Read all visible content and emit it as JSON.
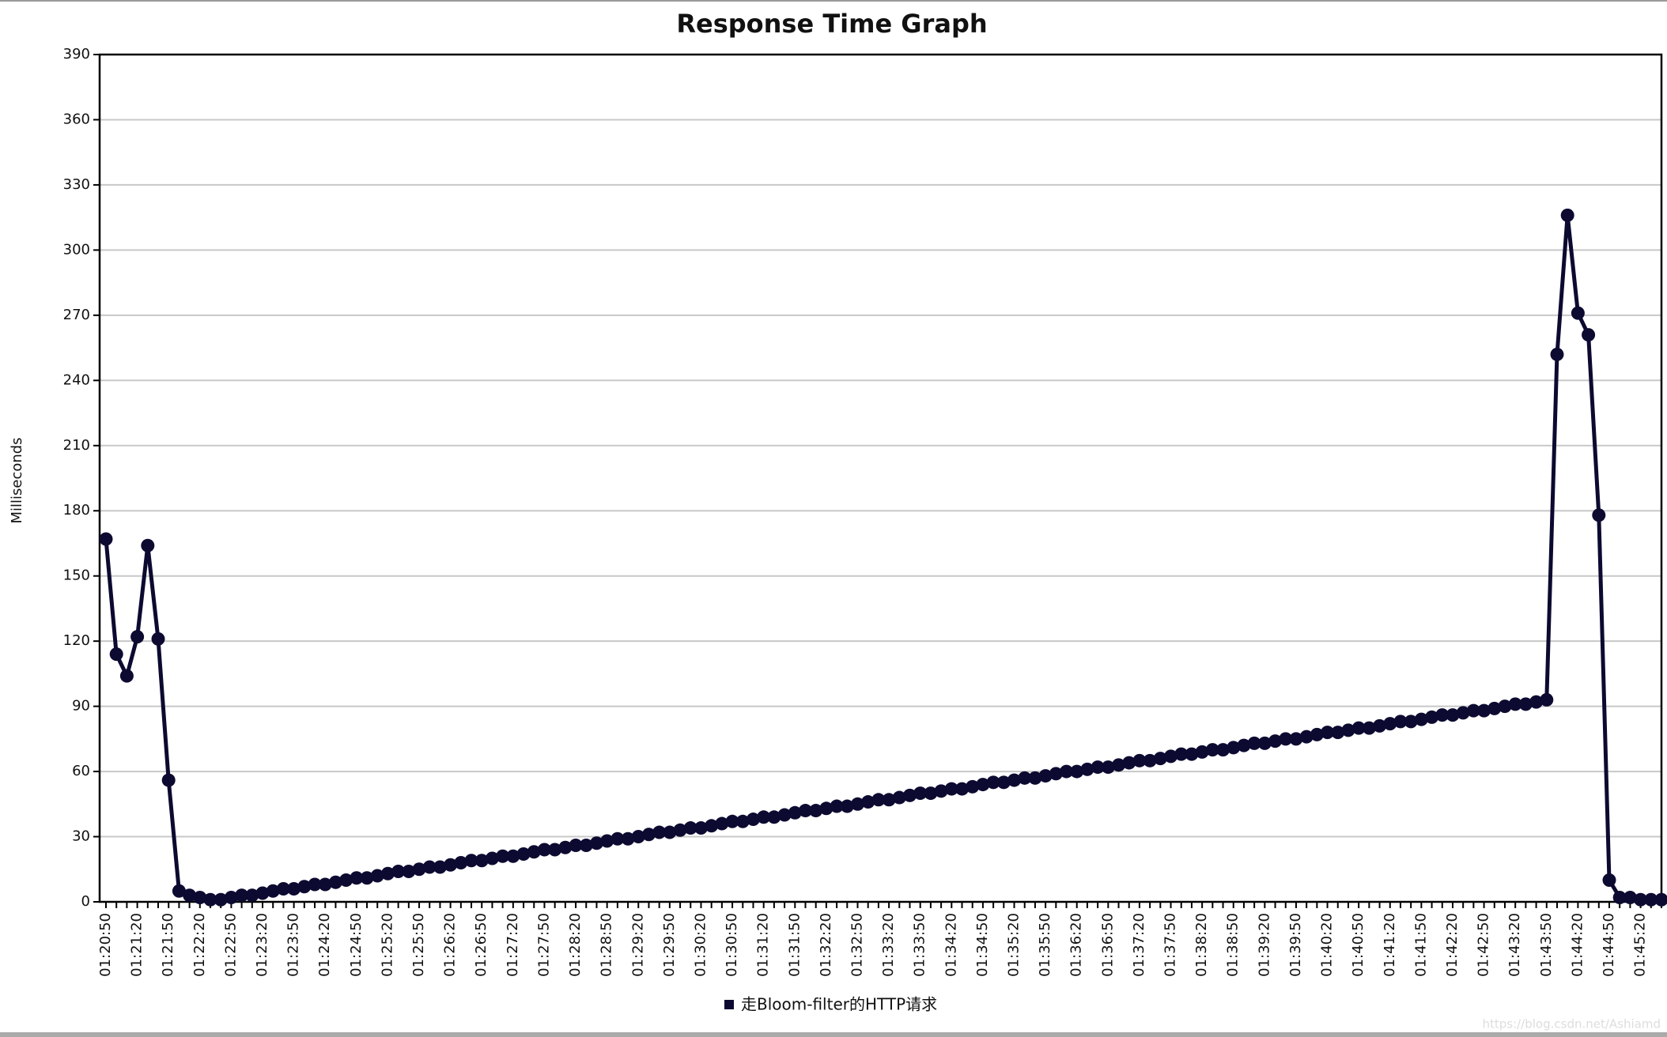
{
  "chart_data": {
    "type": "line",
    "title": "Response Time Graph",
    "y_label": "Milliseconds",
    "categories": [
      "01:20:50",
      null,
      null,
      "01:21:20",
      null,
      null,
      "01:21:50",
      null,
      null,
      "01:22:20",
      null,
      null,
      "01:22:50",
      null,
      null,
      "01:23:20",
      null,
      null,
      "01:23:50",
      null,
      null,
      "01:24:20",
      null,
      null,
      "01:24:50",
      null,
      null,
      "01:25:20",
      null,
      null,
      "01:25:50",
      null,
      null,
      "01:26:20",
      null,
      null,
      "01:26:50",
      null,
      null,
      "01:27:20",
      null,
      null,
      "01:27:50",
      null,
      null,
      "01:28:20",
      null,
      null,
      "01:28:50",
      null,
      null,
      "01:29:20",
      null,
      null,
      "01:29:50",
      null,
      null,
      "01:30:20",
      null,
      null,
      "01:30:50",
      null,
      null,
      "01:31:20",
      null,
      null,
      "01:31:50",
      null,
      null,
      "01:32:20",
      null,
      null,
      "01:32:50",
      null,
      null,
      "01:33:20",
      null,
      null,
      "01:33:50",
      null,
      null,
      "01:34:20",
      null,
      null,
      "01:34:50",
      null,
      null,
      "01:35:20",
      null,
      null,
      "01:35:50",
      null,
      null,
      "01:36:20",
      null,
      null,
      "01:36:50",
      null,
      null,
      "01:37:20",
      null,
      null,
      "01:37:50",
      null,
      null,
      "01:38:20",
      null,
      null,
      "01:38:50",
      null,
      null,
      "01:39:20",
      null,
      null,
      "01:39:50",
      null,
      null,
      "01:40:20",
      null,
      null,
      "01:40:50",
      null,
      null,
      "01:41:20",
      null,
      null,
      "01:41:50",
      null,
      null,
      "01:42:20",
      null,
      null,
      "01:42:50",
      null,
      null,
      "01:43:20",
      null,
      null,
      "01:43:50",
      null,
      null,
      "01:44:20",
      null,
      null,
      "01:44:50",
      null,
      null,
      "01:45:20",
      null,
      null
    ],
    "series": [
      {
        "name": "走Bloom-filter的HTTP请求",
        "color": "#0c0a30",
        "values": [
          167,
          114,
          104,
          122,
          164,
          121,
          56,
          5,
          3,
          2,
          1,
          1,
          2,
          3,
          3,
          4,
          5,
          6,
          6,
          7,
          8,
          8,
          9,
          10,
          11,
          11,
          12,
          13,
          14,
          14,
          15,
          16,
          16,
          17,
          18,
          19,
          19,
          20,
          21,
          21,
          22,
          23,
          24,
          24,
          25,
          26,
          26,
          27,
          28,
          29,
          29,
          30,
          31,
          32,
          32,
          33,
          34,
          34,
          35,
          36,
          37,
          37,
          38,
          39,
          39,
          40,
          41,
          42,
          42,
          43,
          44,
          44,
          45,
          46,
          47,
          47,
          48,
          49,
          50,
          50,
          51,
          52,
          52,
          53,
          54,
          55,
          55,
          56,
          57,
          57,
          58,
          59,
          60,
          60,
          61,
          62,
          62,
          63,
          64,
          65,
          65,
          66,
          67,
          68,
          68,
          69,
          70,
          70,
          71,
          72,
          73,
          73,
          74,
          75,
          75,
          76,
          77,
          78,
          78,
          79,
          80,
          80,
          81,
          82,
          83,
          83,
          84,
          85,
          86,
          86,
          87,
          88,
          88,
          89,
          90,
          91,
          91,
          92,
          93,
          252,
          316,
          271,
          261,
          178,
          10,
          2,
          2,
          1,
          1,
          1
        ]
      }
    ],
    "ylim": [
      0,
      390
    ],
    "yticks": [
      0,
      30,
      60,
      90,
      120,
      150,
      180,
      210,
      240,
      270,
      300,
      330,
      360,
      390
    ],
    "grid": true,
    "watermark": "https://blog.csdn.net/Ashiamd"
  }
}
